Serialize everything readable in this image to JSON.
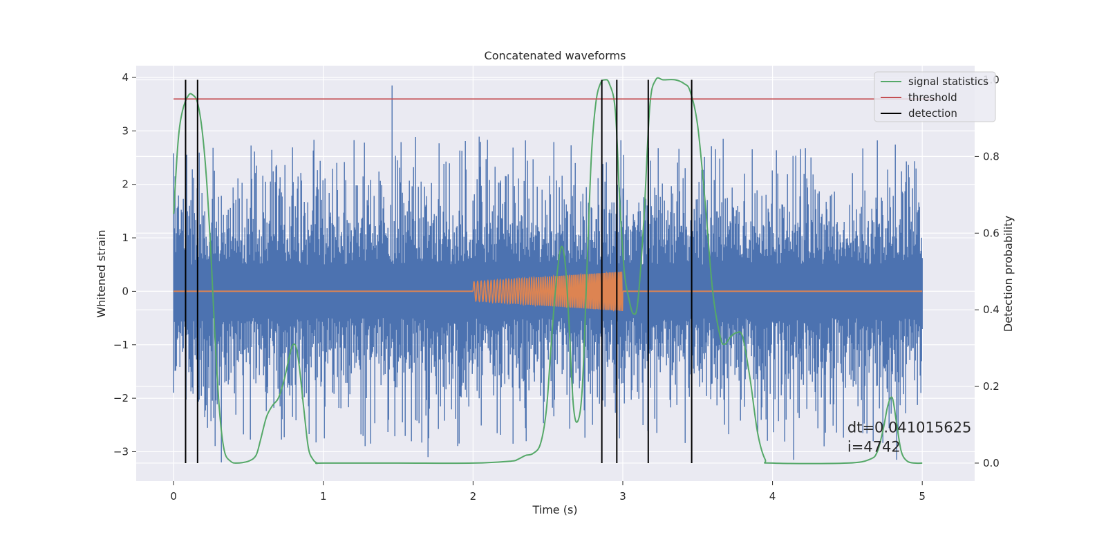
{
  "chart_data": {
    "type": "line",
    "title": "Concatenated waveforms",
    "xlabel": "Time (s)",
    "ylabel": "Whitened strain",
    "ylabel_right": "Detection probability",
    "xlim": [
      -0.25,
      5.35
    ],
    "ylim": [
      -3.55,
      4.22
    ],
    "ylim_right": [
      -0.047,
      1.037
    ],
    "x_ticks": [
      0,
      1,
      2,
      3,
      4,
      5
    ],
    "x_tick_labels": [
      "0",
      "1",
      "2",
      "3",
      "4",
      "5"
    ],
    "y_ticks": [
      -3,
      -2,
      -1,
      0,
      1,
      2,
      3,
      4
    ],
    "y_tick_labels": [
      "−3",
      "−2",
      "−1",
      "0",
      "1",
      "2",
      "3",
      "4"
    ],
    "y_right_ticks": [
      0.0,
      0.2,
      0.4,
      0.6,
      0.8,
      1.0
    ],
    "y_right_tick_labels": [
      "0.0",
      "0.2",
      "0.4",
      "0.6",
      "0.8",
      "1.0"
    ],
    "grid": true,
    "legend_position": "top-right",
    "series": [
      {
        "name": "",
        "kind": "noise",
        "color": "#4c72b0",
        "axis": "left",
        "x_range": [
          0,
          5
        ],
        "typical_band": [
          -1.0,
          1.0
        ],
        "notable_peaks": [
          {
            "x": 1.46,
            "y": 3.85
          },
          {
            "x": 0.01,
            "y": 2.15
          },
          {
            "x": 0.32,
            "y": -3.2
          },
          {
            "x": 4.83,
            "y": -3.15
          },
          {
            "x": 4.14,
            "y": -3.15
          },
          {
            "x": 1.7,
            "y": -3.1
          }
        ]
      },
      {
        "name": "",
        "kind": "chirp",
        "color": "#dd8452",
        "axis": "left",
        "x_range": [
          0,
          5
        ],
        "chirp_start": 2.0,
        "chirp_end": 3.0,
        "amp_start": 0.18,
        "amp_end": 0.37
      },
      {
        "name": "signal statistics",
        "kind": "line",
        "color": "#55a868",
        "axis": "right",
        "x": [
          0.0,
          0.03,
          0.06,
          0.1,
          0.13,
          0.16,
          0.19,
          0.22,
          0.25,
          0.28,
          0.31,
          0.34,
          0.38,
          0.42,
          0.5,
          0.55,
          0.58,
          0.62,
          0.66,
          0.7,
          0.74,
          0.78,
          0.8,
          0.82,
          0.84,
          0.87,
          0.9,
          0.93,
          0.96,
          1.0,
          1.5,
          2.0,
          2.25,
          2.3,
          2.35,
          2.4,
          2.45,
          2.49,
          2.52,
          2.55,
          2.58,
          2.6,
          2.62,
          2.64,
          2.67,
          2.7,
          2.73,
          2.76,
          2.79,
          2.82,
          2.85,
          2.88,
          2.91,
          2.95,
          2.98,
          3.01,
          3.04,
          3.07,
          3.1,
          3.14,
          3.18,
          3.22,
          3.27,
          3.35,
          3.41,
          3.45,
          3.5,
          3.55,
          3.6,
          3.65,
          3.68,
          3.72,
          3.76,
          3.8,
          3.85,
          3.9,
          3.95,
          4.0,
          4.5,
          4.65,
          4.7,
          4.74,
          4.77,
          4.8,
          4.83,
          4.86,
          4.9,
          4.95,
          5.0
        ],
        "values": [
          0.65,
          0.84,
          0.92,
          0.96,
          0.96,
          0.94,
          0.87,
          0.74,
          0.54,
          0.3,
          0.12,
          0.03,
          0.005,
          0.0,
          0.005,
          0.02,
          0.06,
          0.12,
          0.15,
          0.17,
          0.22,
          0.29,
          0.31,
          0.3,
          0.25,
          0.14,
          0.04,
          0.01,
          0.0,
          0.0,
          0.0,
          0.0,
          0.005,
          0.01,
          0.02,
          0.025,
          0.05,
          0.14,
          0.3,
          0.45,
          0.55,
          0.56,
          0.5,
          0.37,
          0.15,
          0.11,
          0.2,
          0.5,
          0.8,
          0.94,
          0.99,
          1.0,
          0.99,
          0.92,
          0.68,
          0.5,
          0.43,
          0.39,
          0.42,
          0.63,
          0.93,
          1.0,
          1.0,
          1.0,
          0.99,
          0.97,
          0.88,
          0.68,
          0.45,
          0.33,
          0.31,
          0.33,
          0.34,
          0.33,
          0.22,
          0.08,
          0.01,
          0.0,
          0.0,
          0.01,
          0.03,
          0.09,
          0.15,
          0.17,
          0.1,
          0.03,
          0.005,
          0.0,
          0.0
        ]
      },
      {
        "name": "threshold",
        "kind": "hline",
        "color": "#c44e52",
        "axis": "right",
        "x_range": [
          0,
          5.1
        ],
        "value": 0.95
      },
      {
        "name": "detection",
        "kind": "vlines",
        "color": "#000000",
        "axis": "right",
        "x": [
          0.08,
          0.16,
          2.86,
          2.96,
          3.17,
          3.46
        ],
        "y_range": [
          0.0,
          1.0
        ]
      }
    ],
    "annotation": {
      "lines": [
        "dt=0.041015625",
        " i=4742"
      ],
      "x": 4.5,
      "y_right": 0.08
    }
  }
}
